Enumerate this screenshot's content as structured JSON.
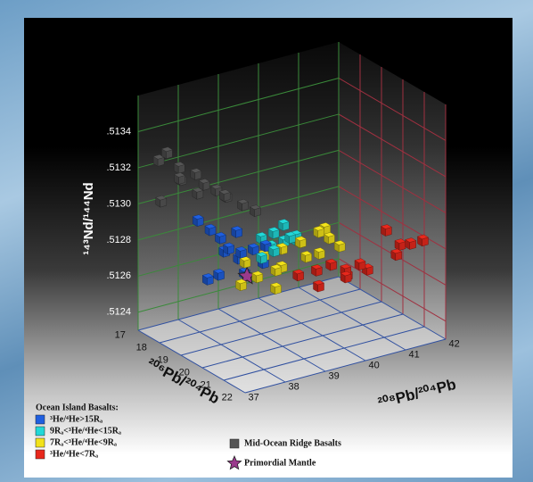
{
  "chart_data": {
    "type": "scatter3d",
    "xlabel": "²⁰⁶Pb/²⁰⁴Pb",
    "ylabel": "²⁰⁸Pb/²⁰⁴Pb",
    "zlabel": "¹⁴³Nd/¹⁴⁴Nd",
    "xlim": [
      17,
      22
    ],
    "xticks": [
      17,
      18,
      19,
      20,
      21,
      22
    ],
    "ylim": [
      37,
      42
    ],
    "yticks": [
      37,
      38,
      39,
      40,
      41,
      42
    ],
    "zlim": [
      0.5123,
      0.5136
    ],
    "zticks": [
      {
        "value": 0.5124,
        "label": ".5124"
      },
      {
        "value": 0.5126,
        "label": ".5126"
      },
      {
        "value": 0.5128,
        "label": ".5128"
      },
      {
        "value": 0.513,
        "label": ".5130"
      },
      {
        "value": 0.5132,
        "label": ".5132"
      },
      {
        "value": 0.5134,
        "label": ".5134"
      }
    ],
    "grid": true,
    "legend_title": "Ocean Island Basalts:",
    "series": [
      {
        "name": "³He/⁴He>15Rₐ",
        "color": "#1f5fe0",
        "marker": "cube",
        "x": [
          18.3,
          18.5,
          18.6,
          18.8,
          19.0,
          18.4,
          18.7,
          19.2,
          18.9,
          19.4,
          18.6,
          19.1,
          18.2,
          18.8
        ],
        "y": [
          37.8,
          38.0,
          38.2,
          38.3,
          38.5,
          38.4,
          38.6,
          38.7,
          38.0,
          38.9,
          38.8,
          39.0,
          38.1,
          38.5
        ],
        "z": [
          0.51295,
          0.5129,
          0.51285,
          0.5128,
          0.51278,
          0.51275,
          0.51272,
          0.5128,
          0.51268,
          0.51282,
          0.51262,
          0.5127,
          0.5126,
          0.51288
        ]
      },
      {
        "name": "9Rₐ<³He/⁴He<15Rₐ",
        "color": "#22d8d8",
        "marker": "cube",
        "x": [
          19.2,
          19.4,
          19.5,
          19.3,
          19.6,
          19.7,
          19.1,
          19.5,
          19.8,
          19.4
        ],
        "y": [
          38.9,
          39.1,
          39.3,
          39.4,
          39.0,
          39.5,
          39.2,
          39.6,
          39.3,
          38.8
        ],
        "z": [
          0.51285,
          0.51288,
          0.51283,
          0.5129,
          0.5128,
          0.51286,
          0.51278,
          0.51282,
          0.51287,
          0.51276
        ]
      },
      {
        "name": "7Rₐ<³He/⁴He<9Rₐ",
        "color": "#f2e21a",
        "marker": "cube",
        "x": [
          19.0,
          19.3,
          19.6,
          19.9,
          20.2,
          20.5,
          19.4,
          19.8,
          20.1,
          20.6,
          19.2,
          19.5,
          20.8,
          19.0,
          19.7,
          20.3
        ],
        "y": [
          38.6,
          38.9,
          39.2,
          39.5,
          39.8,
          39.9,
          39.3,
          39.7,
          39.4,
          39.6,
          38.8,
          39.1,
          40.0,
          38.5,
          39.0,
          39.9
        ],
        "z": [
          0.51272,
          0.51276,
          0.5128,
          0.51284,
          0.5129,
          0.51288,
          0.51268,
          0.51274,
          0.51286,
          0.51282,
          0.51264,
          0.51258,
          0.51285,
          0.5126,
          0.5127,
          0.51292
        ]
      },
      {
        "name": "³He/⁴He<7Rₐ",
        "color": "#e8281c",
        "marker": "cube",
        "x": [
          19.8,
          20.1,
          20.4,
          20.7,
          21.0,
          20.2,
          20.6,
          21.2,
          21.0,
          21.3,
          21.5,
          20.9,
          20.0,
          21.1
        ],
        "y": [
          39.5,
          39.8,
          40.0,
          40.2,
          40.4,
          40.5,
          40.8,
          41.2,
          41.4,
          41.5,
          41.7,
          40.1,
          39.9,
          41.0
        ],
        "z": [
          0.51265,
          0.51268,
          0.51272,
          0.5127,
          0.51274,
          0.51262,
          0.51266,
          0.51276,
          0.51279,
          0.51281,
          0.51283,
          0.51268,
          0.51258,
          0.5129
        ]
      },
      {
        "name": "Mid-Ocean Ridge Basalts",
        "color": "#555555",
        "marker": "cube",
        "x": [
          17.4,
          17.6,
          17.8,
          18.0,
          18.2,
          18.4,
          18.6,
          18.8,
          17.7,
          18.1,
          18.5,
          18.9,
          19.1,
          17.5
        ],
        "y": [
          37.3,
          37.4,
          37.6,
          37.5,
          37.8,
          37.9,
          38.1,
          38.2,
          37.2,
          37.9,
          38.4,
          38.6,
          38.8,
          37.8
        ],
        "z": [
          0.51325,
          0.5133,
          0.51322,
          0.51318,
          0.5132,
          0.51315,
          0.51312,
          0.5131,
          0.51305,
          0.51308,
          0.51306,
          0.51303,
          0.513,
          0.51312
        ]
      },
      {
        "name": "Primordial Mantle",
        "color": "#9a3a8c",
        "marker": "star",
        "x": [
          18.9
        ],
        "y": [
          38.7
        ],
        "z": [
          0.51263
        ]
      }
    ]
  }
}
